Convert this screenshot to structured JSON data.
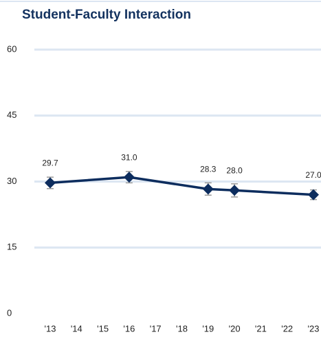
{
  "chart_data": {
    "type": "line",
    "title": "Student-Faculty Interaction",
    "x": [
      2013,
      2016,
      2019,
      2020,
      2023
    ],
    "xlim": [
      2013,
      2023
    ],
    "xticks": [
      {
        "value": 2013,
        "label": "'13"
      },
      {
        "value": 2014,
        "label": "'14"
      },
      {
        "value": 2015,
        "label": "'15"
      },
      {
        "value": 2016,
        "label": "'16"
      },
      {
        "value": 2017,
        "label": "'17"
      },
      {
        "value": 2018,
        "label": "'18"
      },
      {
        "value": 2019,
        "label": "'19"
      },
      {
        "value": 2020,
        "label": "'20"
      },
      {
        "value": 2021,
        "label": "'21"
      },
      {
        "value": 2022,
        "label": "'22"
      },
      {
        "value": 2023,
        "label": "'23"
      }
    ],
    "series": [
      {
        "color": "#0d2d5e",
        "error_color": "#999999",
        "values": [
          29.7,
          31.0,
          28.3,
          28.0,
          27.0
        ],
        "value_labels": [
          "29.7",
          "31.0",
          "28.3",
          "28.0",
          "27.0"
        ],
        "errors": [
          1.3,
          1.3,
          1.4,
          1.5,
          1.1
        ]
      }
    ],
    "ylim": [
      0,
      60
    ],
    "yticks": [
      0,
      15,
      30,
      45,
      60
    ],
    "grid": true,
    "grid_color": "#dce6f2"
  }
}
